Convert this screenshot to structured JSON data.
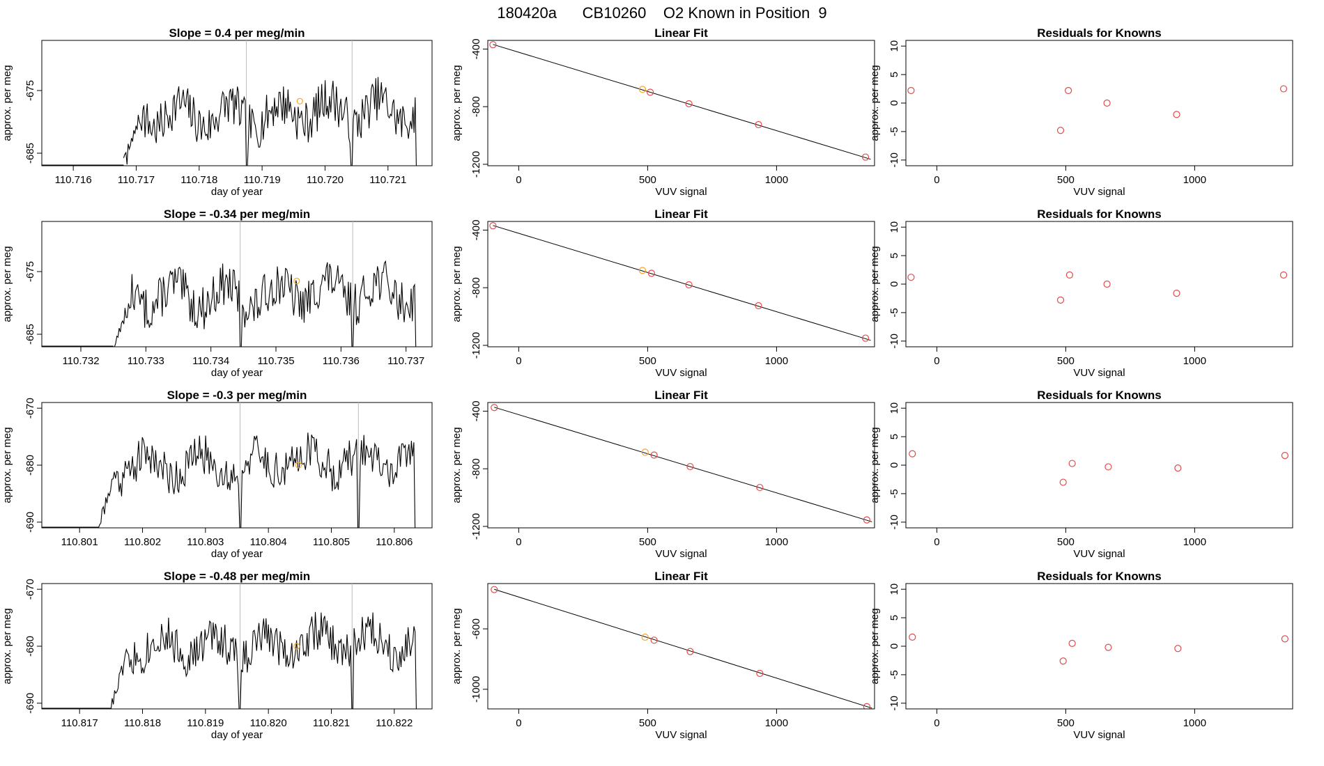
{
  "figure": {
    "title": "180420a      CB10260    O2 Known in Position  9"
  },
  "chart_data": [
    {
      "type": "line",
      "role": "time-series",
      "row": 0,
      "title": "Slope =  0.4  per meg/min",
      "xlabel": "day of year",
      "ylabel": "approx. per meg",
      "xlim": [
        110.7155,
        110.7217
      ],
      "ylim": [
        -687,
        -667
      ],
      "xticks": [
        110.716,
        110.717,
        110.718,
        110.719,
        110.72,
        110.721
      ],
      "xtick_labels": [
        "110.716",
        "110.717",
        "110.718",
        "110.719",
        "110.720",
        "110.721"
      ],
      "yticks": [
        -675,
        -685
      ],
      "ytick_labels": [
        "-675",
        "-685"
      ],
      "vlines": [
        110.71875,
        110.72043
      ],
      "marker": {
        "x": 110.7196,
        "y": -676.7
      },
      "x_start": 110.7168,
      "x_end": 110.72145,
      "seed": 7
    },
    {
      "type": "scatter",
      "role": "linear-fit",
      "row": 0,
      "title": "Linear Fit",
      "xlabel": "VUV signal",
      "ylabel": "approx. per meg",
      "xlim": [
        -120,
        1380
      ],
      "ylim": [
        -1210,
        -340
      ],
      "xticks": [
        0,
        500,
        1000
      ],
      "xtick_labels": [
        "0",
        "500",
        "1000"
      ],
      "yticks": [
        -400,
        -800,
        -1200
      ],
      "ytick_labels": [
        "-400",
        "-800",
        "-1200"
      ],
      "points": [
        {
          "x": -100,
          "y": -370
        },
        {
          "x": 480,
          "y": -680
        },
        {
          "x": 510,
          "y": -700
        },
        {
          "x": 660,
          "y": -780
        },
        {
          "x": 930,
          "y": -925
        },
        {
          "x": 1345,
          "y": -1150
        }
      ],
      "highlight_index": 1,
      "fit": {
        "x1": -100,
        "y1": -368,
        "x2": 1365,
        "y2": -1165
      }
    },
    {
      "type": "scatter",
      "role": "residuals",
      "row": 0,
      "title": "Residuals for Knowns",
      "xlabel": "VUV signal",
      "ylabel": "approx. per meg",
      "xlim": [
        -120,
        1380
      ],
      "ylim": [
        -11,
        11
      ],
      "xticks": [
        0,
        500,
        1000
      ],
      "xtick_labels": [
        "0",
        "500",
        "1000"
      ],
      "yticks": [
        10,
        5,
        0,
        -5,
        -10
      ],
      "ytick_labels": [
        "10",
        "5",
        "0",
        "-5",
        "-10"
      ],
      "points": [
        {
          "x": -100,
          "y": 2.2
        },
        {
          "x": 480,
          "y": -4.8
        },
        {
          "x": 510,
          "y": 2.2
        },
        {
          "x": 660,
          "y": 0.0
        },
        {
          "x": 930,
          "y": -2.0
        },
        {
          "x": 1345,
          "y": 2.5
        }
      ]
    },
    {
      "type": "line",
      "role": "time-series",
      "row": 1,
      "title": "Slope =  -0.34  per meg/min",
      "xlabel": "day of year",
      "ylabel": "approx. per meg",
      "xlim": [
        110.7314,
        110.7374
      ],
      "ylim": [
        -687,
        -667
      ],
      "xticks": [
        110.732,
        110.733,
        110.734,
        110.735,
        110.736,
        110.737
      ],
      "xtick_labels": [
        "110.732",
        "110.733",
        "110.734",
        "110.735",
        "110.736",
        "110.737"
      ],
      "yticks": [
        -675,
        -685
      ],
      "ytick_labels": [
        "-675",
        "-685"
      ],
      "vlines": [
        110.73445,
        110.73618
      ],
      "marker": {
        "x": 110.73532,
        "y": -676.5
      },
      "x_start": 110.7325,
      "x_end": 110.73715,
      "seed": 13
    },
    {
      "type": "scatter",
      "role": "linear-fit",
      "row": 1,
      "title": "Linear Fit",
      "xlabel": "VUV signal",
      "ylabel": "approx. per meg",
      "xlim": [
        -120,
        1380
      ],
      "ylim": [
        -1210,
        -340
      ],
      "xticks": [
        0,
        500,
        1000
      ],
      "xtick_labels": [
        "0",
        "500",
        "1000"
      ],
      "yticks": [
        -400,
        -800,
        -1200
      ],
      "ytick_labels": [
        "-400",
        "-800",
        "-1200"
      ],
      "points": [
        {
          "x": -100,
          "y": -370
        },
        {
          "x": 480,
          "y": -680
        },
        {
          "x": 515,
          "y": -700
        },
        {
          "x": 660,
          "y": -780
        },
        {
          "x": 930,
          "y": -925
        },
        {
          "x": 1345,
          "y": -1150
        }
      ],
      "highlight_index": 1,
      "fit": {
        "x1": -100,
        "y1": -368,
        "x2": 1365,
        "y2": -1165
      }
    },
    {
      "type": "scatter",
      "role": "residuals",
      "row": 1,
      "title": "Residuals for Knowns",
      "xlabel": "VUV signal",
      "ylabel": "approx. per meg",
      "xlim": [
        -120,
        1380
      ],
      "ylim": [
        -11,
        11
      ],
      "xticks": [
        0,
        500,
        1000
      ],
      "xtick_labels": [
        "0",
        "500",
        "1000"
      ],
      "yticks": [
        10,
        5,
        0,
        -5,
        -10
      ],
      "ytick_labels": [
        "10",
        "5",
        "0",
        "-5",
        "-10"
      ],
      "points": [
        {
          "x": -100,
          "y": 1.2
        },
        {
          "x": 480,
          "y": -2.8
        },
        {
          "x": 515,
          "y": 1.6
        },
        {
          "x": 660,
          "y": 0.0
        },
        {
          "x": 930,
          "y": -1.6
        },
        {
          "x": 1345,
          "y": 1.6
        }
      ]
    },
    {
      "type": "line",
      "role": "time-series",
      "row": 2,
      "title": "Slope =  -0.3  per meg/min",
      "xlabel": "day of year",
      "ylabel": "approx. per meg",
      "xlim": [
        110.8004,
        110.8066
      ],
      "ylim": [
        -691,
        -669
      ],
      "xticks": [
        110.801,
        110.802,
        110.803,
        110.804,
        110.805,
        110.806
      ],
      "xtick_labels": [
        "110.801",
        "110.802",
        "110.803",
        "110.804",
        "110.805",
        "110.806"
      ],
      "yticks": [
        -670,
        -680,
        -690
      ],
      "ytick_labels": [
        "-670",
        "-680",
        "-690"
      ],
      "vlines": [
        110.80355,
        110.80543
      ],
      "marker": {
        "x": 110.80448,
        "y": -680.0
      },
      "x_start": 110.8013,
      "x_end": 110.80633,
      "seed": 21
    },
    {
      "type": "scatter",
      "role": "linear-fit",
      "row": 2,
      "title": "Linear Fit",
      "xlabel": "VUV signal",
      "ylabel": "approx. per meg",
      "xlim": [
        -120,
        1380
      ],
      "ylim": [
        -1210,
        -340
      ],
      "xticks": [
        0,
        500,
        1000
      ],
      "xtick_labels": [
        "0",
        "500",
        "1000"
      ],
      "yticks": [
        -400,
        -800,
        -1200
      ],
      "ytick_labels": [
        "-400",
        "-800",
        "-1200"
      ],
      "points": [
        {
          "x": -95,
          "y": -375
        },
        {
          "x": 490,
          "y": -685
        },
        {
          "x": 525,
          "y": -705
        },
        {
          "x": 665,
          "y": -785
        },
        {
          "x": 935,
          "y": -930
        },
        {
          "x": 1350,
          "y": -1155
        }
      ],
      "highlight_index": 1,
      "fit": {
        "x1": -95,
        "y1": -373,
        "x2": 1370,
        "y2": -1168
      }
    },
    {
      "type": "scatter",
      "role": "residuals",
      "row": 2,
      "title": "Residuals for Knowns",
      "xlabel": "VUV signal",
      "ylabel": "approx. per meg",
      "xlim": [
        -120,
        1380
      ],
      "ylim": [
        -11,
        11
      ],
      "xticks": [
        0,
        500,
        1000
      ],
      "xtick_labels": [
        "0",
        "500",
        "1000"
      ],
      "yticks": [
        10,
        5,
        0,
        -5,
        -10
      ],
      "ytick_labels": [
        "10",
        "5",
        "0",
        "-5",
        "-10"
      ],
      "points": [
        {
          "x": -95,
          "y": 2.0
        },
        {
          "x": 490,
          "y": -3.0
        },
        {
          "x": 525,
          "y": 0.3
        },
        {
          "x": 665,
          "y": -0.3
        },
        {
          "x": 935,
          "y": -0.5
        },
        {
          "x": 1350,
          "y": 1.7
        }
      ]
    },
    {
      "type": "line",
      "role": "time-series",
      "row": 3,
      "title": "Slope =  -0.48  per meg/min",
      "xlabel": "day of year",
      "ylabel": "approx. per meg",
      "xlim": [
        110.8164,
        110.8226
      ],
      "ylim": [
        -691,
        -669
      ],
      "xticks": [
        110.817,
        110.818,
        110.819,
        110.82,
        110.821,
        110.822
      ],
      "xtick_labels": [
        "110.817",
        "110.818",
        "110.819",
        "110.820",
        "110.821",
        "110.822"
      ],
      "yticks": [
        -670,
        -680,
        -690
      ],
      "ytick_labels": [
        "-670",
        "-680",
        "-690"
      ],
      "vlines": [
        110.81955,
        110.82133
      ],
      "marker": {
        "x": 110.82045,
        "y": -680.0
      },
      "x_start": 110.8175,
      "x_end": 110.82235,
      "seed": 33
    },
    {
      "type": "scatter",
      "role": "linear-fit",
      "row": 3,
      "title": "Linear Fit",
      "xlabel": "VUV signal",
      "ylabel": "approx. per meg",
      "xlim": [
        -120,
        1380
      ],
      "ylim": [
        -1130,
        -300
      ],
      "xticks": [
        0,
        500,
        1000
      ],
      "xtick_labels": [
        "0",
        "500",
        "1000"
      ],
      "yticks": [
        -600,
        -1000
      ],
      "ytick_labels": [
        "-600",
        "-1000"
      ],
      "points": [
        {
          "x": -95,
          "y": -340
        },
        {
          "x": 490,
          "y": -655
        },
        {
          "x": 525,
          "y": -675
        },
        {
          "x": 665,
          "y": -750
        },
        {
          "x": 935,
          "y": -895
        },
        {
          "x": 1350,
          "y": -1115
        }
      ],
      "highlight_index": 1,
      "fit": {
        "x1": -95,
        "y1": -338,
        "x2": 1370,
        "y2": -1125
      }
    },
    {
      "type": "scatter",
      "role": "residuals",
      "row": 3,
      "title": "Residuals for Knowns",
      "xlabel": "VUV signal",
      "ylabel": "approx. per meg",
      "xlim": [
        -120,
        1380
      ],
      "ylim": [
        -11,
        11
      ],
      "xticks": [
        0,
        500,
        1000
      ],
      "xtick_labels": [
        "0",
        "500",
        "1000"
      ],
      "yticks": [
        10,
        5,
        0,
        -5,
        -10
      ],
      "ytick_labels": [
        "10",
        "5",
        "0",
        "-5",
        "-10"
      ],
      "points": [
        {
          "x": -95,
          "y": 1.6
        },
        {
          "x": 490,
          "y": -2.6
        },
        {
          "x": 525,
          "y": 0.5
        },
        {
          "x": 665,
          "y": -0.2
        },
        {
          "x": 935,
          "y": -0.4
        },
        {
          "x": 1350,
          "y": 1.3
        }
      ]
    }
  ]
}
